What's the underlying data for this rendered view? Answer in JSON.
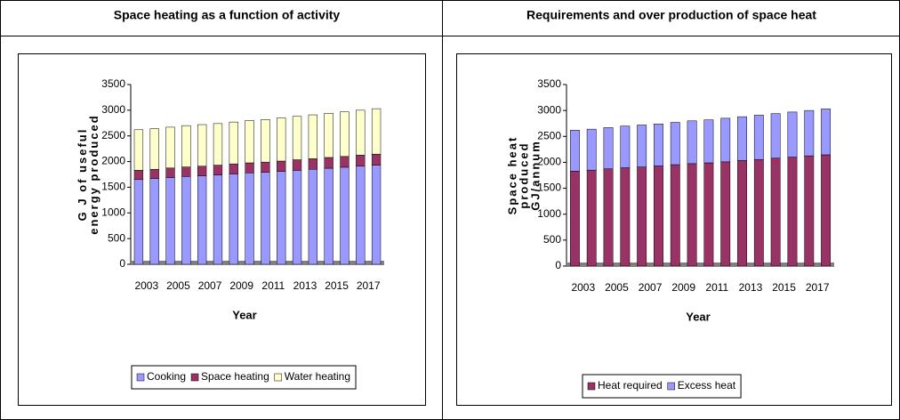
{
  "chart_data": [
    {
      "type": "bar",
      "stacked": true,
      "title": "Space heating as a function of activity",
      "ylabel": [
        "G J of useful",
        "energy produced"
      ],
      "xlabel": "Year",
      "categories": [
        "2003",
        null,
        "2005",
        null,
        "2007",
        null,
        "2009",
        null,
        "2011",
        null,
        "2013",
        null,
        "2015",
        null,
        "2017",
        null
      ],
      "series": [
        {
          "name": "Cooking",
          "color": "#9999ff",
          "values": [
            1650,
            1670,
            1690,
            1710,
            1720,
            1740,
            1760,
            1780,
            1790,
            1810,
            1830,
            1850,
            1870,
            1890,
            1910,
            1930
          ]
        },
        {
          "name": "Space heating",
          "color": "#993366",
          "values": [
            180,
            180,
            185,
            185,
            190,
            190,
            195,
            195,
            200,
            200,
            205,
            205,
            210,
            210,
            215,
            215
          ]
        },
        {
          "name": "Water heating",
          "color": "#ffffcc",
          "values": [
            790,
            790,
            795,
            805,
            810,
            810,
            815,
            825,
            830,
            840,
            845,
            855,
            860,
            870,
            875,
            885
          ]
        }
      ],
      "ylim": [
        0,
        3500
      ],
      "yticks": [
        0,
        500,
        1000,
        1500,
        2000,
        2500,
        3000,
        3500
      ],
      "legend": "bottom"
    },
    {
      "type": "bar",
      "stacked": true,
      "title": "Requirements and over production of space heat",
      "ylabel": [
        "Space heat",
        "produced",
        "GJ/annum"
      ],
      "xlabel": "Year",
      "categories": [
        "2003",
        null,
        "2005",
        null,
        "2007",
        null,
        "2009",
        null,
        "2011",
        null,
        "2013",
        null,
        "2015",
        null,
        "2017",
        null
      ],
      "series": [
        {
          "name": "Heat required",
          "color": "#993366",
          "values": [
            1830,
            1850,
            1875,
            1895,
            1910,
            1930,
            1955,
            1975,
            1990,
            2010,
            2035,
            2055,
            2080,
            2100,
            2125,
            2145
          ]
        },
        {
          "name": "Excess heat",
          "color": "#9999ff",
          "values": [
            790,
            790,
            795,
            805,
            810,
            810,
            815,
            825,
            830,
            840,
            845,
            855,
            860,
            870,
            875,
            885
          ]
        }
      ],
      "ylim": [
        0,
        3500
      ],
      "yticks": [
        0,
        500,
        1000,
        1500,
        2000,
        2500,
        3000,
        3500
      ],
      "legend": "bottom"
    }
  ]
}
